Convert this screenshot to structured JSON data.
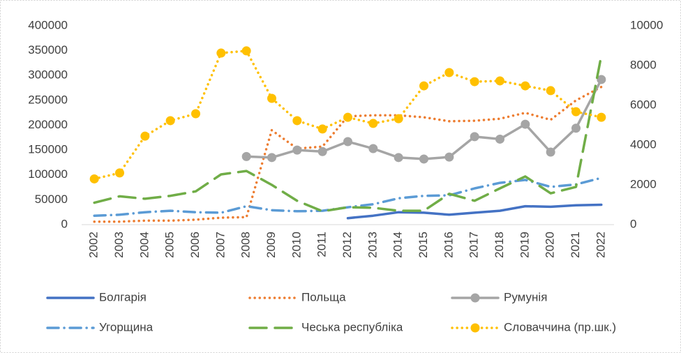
{
  "chart_data": {
    "type": "line",
    "categories": [
      "2002",
      "2003",
      "2004",
      "2005",
      "2006",
      "2007",
      "2008",
      "2009",
      "2010",
      "2011",
      "2012",
      "2013",
      "2014",
      "2015",
      "2016",
      "2017",
      "2018",
      "2019",
      "2020",
      "2021",
      "2022"
    ],
    "ylim": [
      0,
      400000
    ],
    "yticks": [
      0,
      50000,
      100000,
      150000,
      200000,
      250000,
      300000,
      350000,
      400000
    ],
    "y2lim": [
      0,
      10000
    ],
    "y2ticks": [
      0,
      2000,
      4000,
      6000,
      8000,
      10000
    ],
    "grid": false,
    "legend": "bottom",
    "series": [
      {
        "name": "Болгарія",
        "color": "#4472c4",
        "dash": "solid",
        "values": [
          null,
          null,
          null,
          null,
          null,
          null,
          null,
          null,
          null,
          null,
          13000,
          18000,
          25000,
          24000,
          20000,
          24000,
          28000,
          37000,
          36000,
          39000,
          40000
        ]
      },
      {
        "name": "Польща",
        "color": "#ed7d31",
        "dash": "dot",
        "values": [
          6000,
          6000,
          8000,
          8000,
          10000,
          14000,
          15000,
          190000,
          153000,
          157000,
          218000,
          220000,
          220000,
          216000,
          208000,
          209000,
          213000,
          225000,
          211000,
          250000,
          277000
        ]
      },
      {
        "name": "Румунія",
        "color": "#a5a5a5",
        "dash": "solid",
        "marker": "circle",
        "values": [
          null,
          null,
          null,
          null,
          null,
          null,
          137000,
          135000,
          150000,
          147000,
          167000,
          153000,
          135000,
          132000,
          136000,
          177000,
          172000,
          202000,
          146000,
          194000,
          292000
        ]
      },
      {
        "name": "Угорщина",
        "color": "#5b9bd5",
        "dash": "dashdot",
        "values": [
          18000,
          20000,
          25000,
          28000,
          25000,
          24000,
          37000,
          29000,
          27000,
          28000,
          35000,
          41000,
          53000,
          58000,
          59000,
          73000,
          84000,
          90000,
          76000,
          81000,
          94000
        ]
      },
      {
        "name": "Чеська республіка",
        "color": "#70ad47",
        "dash": "dash",
        "values": [
          44000,
          57000,
          52000,
          58000,
          67000,
          101000,
          108000,
          80000,
          48000,
          27000,
          35000,
          34000,
          28000,
          28000,
          62000,
          48000,
          73000,
          97000,
          63000,
          76000,
          340000
        ]
      },
      {
        "name": "Словаччина (пр.шк.)",
        "color": "#ffc000",
        "dash": "dot",
        "marker": "circle",
        "axis": "y2",
        "values": [
          2300,
          2600,
          4450,
          5230,
          5580,
          8630,
          8740,
          6350,
          5230,
          4810,
          5400,
          5090,
          5330,
          6980,
          7650,
          7190,
          7230,
          6980,
          6740,
          5680,
          5400
        ]
      }
    ]
  }
}
